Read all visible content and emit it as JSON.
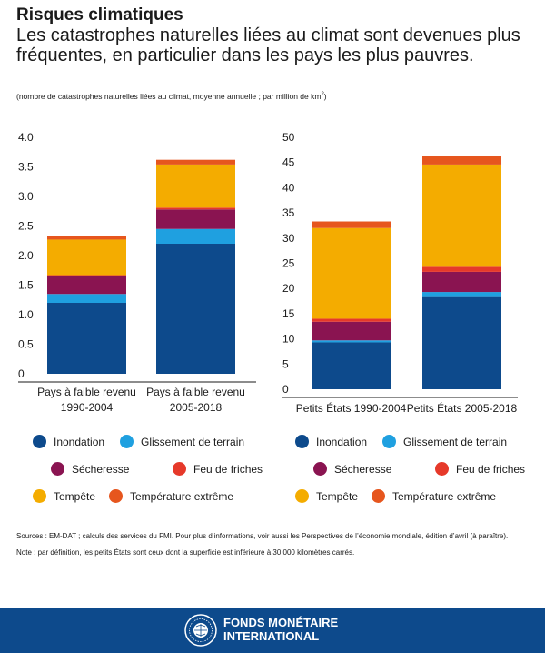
{
  "header": {
    "title": "Risques climatiques",
    "subtitle": "Les catastrophes naturelles liées au climat sont devenues plus fréquentes, en particulier dans les pays les plus pauvres.",
    "unit_text": "(nombre de catastrophes naturelles liées au climat, moyenne annuelle ; par million de km",
    "unit_sup": "2",
    "unit_close": ")"
  },
  "colors": {
    "Inondation": "#0d4a8c",
    "Glissement de terrain": "#1fa0e0",
    "Sécheresse": "#8a1451",
    "Feu de friches": "#e6392a",
    "Tempête": "#f4ac00",
    "Température extrême": "#e6561e"
  },
  "chart_data": [
    {
      "type": "bar",
      "stacked": true,
      "categories": [
        [
          "Pays à faible revenu",
          "1990-2004"
        ],
        [
          "Pays à faible revenu",
          "2005-2018"
        ]
      ],
      "ylim": [
        0,
        4.0
      ],
      "yticks": [
        "0",
        "0.5",
        "1.0",
        "1.5",
        "2.0",
        "2.5",
        "3.0",
        "3.5",
        "4.0"
      ],
      "series": [
        {
          "name": "Inondation",
          "values": [
            1.2,
            2.2
          ]
        },
        {
          "name": "Glissement de terrain",
          "values": [
            0.15,
            0.25
          ]
        },
        {
          "name": "Sécheresse",
          "values": [
            0.3,
            0.33
          ]
        },
        {
          "name": "Feu de friches",
          "values": [
            0.02,
            0.03
          ]
        },
        {
          "name": "Tempête",
          "values": [
            0.6,
            0.73
          ]
        },
        {
          "name": "Température extrême",
          "values": [
            0.06,
            0.08
          ]
        }
      ]
    },
    {
      "type": "bar",
      "stacked": true,
      "categories": [
        [
          "Petits États 1990-2004"
        ],
        [
          "Petits États 2005-2018"
        ]
      ],
      "ylim": [
        0,
        50
      ],
      "yticks": [
        "0",
        "5",
        "10",
        "15",
        "20",
        "25",
        "30",
        "35",
        "40",
        "45",
        "50"
      ],
      "series": [
        {
          "name": "Inondation",
          "values": [
            9.3,
            18.3
          ]
        },
        {
          "name": "Glissement de terrain",
          "values": [
            0.4,
            1.0
          ]
        },
        {
          "name": "Sécheresse",
          "values": [
            3.7,
            4.0
          ]
        },
        {
          "name": "Feu de friches",
          "values": [
            0.6,
            1.0
          ]
        },
        {
          "name": "Tempête",
          "values": [
            18.0,
            20.3
          ]
        },
        {
          "name": "Température extrême",
          "values": [
            1.3,
            1.7
          ]
        }
      ]
    }
  ],
  "legend": [
    "Inondation",
    "Glissement de terrain",
    "Sécheresse",
    "Feu de friches",
    "Tempête",
    "Température extrême"
  ],
  "notes": {
    "sources": "Sources : EM-DAT ; calculs des services du FMI. Pour plus d’informations, voir aussi les Perspectives de l’économie mondiale, édition d’avril (à paraître).",
    "note": "Note : par définition, les petits États sont ceux dont la superficie est inférieure à 30 000 kilomètres carrés."
  },
  "footer": {
    "org_line1": "FONDS MONÉTAIRE",
    "org_line2": "INTERNATIONAL"
  }
}
